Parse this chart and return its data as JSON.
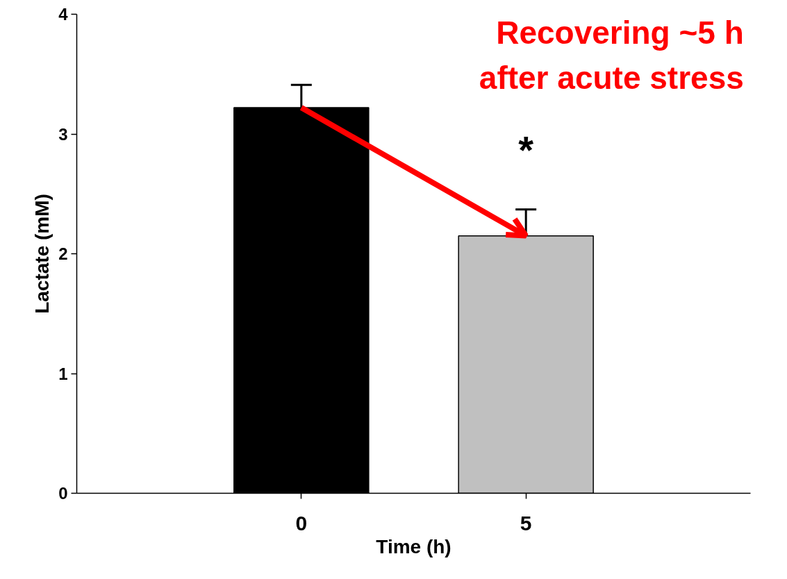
{
  "chart_data": {
    "type": "bar",
    "xlabel": "Time (h)",
    "ylabel": "Lactate (mM)",
    "categories": [
      "0",
      "5"
    ],
    "values": [
      3.22,
      2.15
    ],
    "colors": [
      "#000000",
      "#c0c0c0"
    ],
    "errors": [
      [
        3.22,
        3.41
      ],
      [
        2.15,
        2.37
      ]
    ],
    "ylim": [
      0,
      4
    ],
    "yticks": [
      0,
      1,
      2,
      3,
      4
    ],
    "grid": false,
    "annotations": [
      "Recovering ~5 h\nafter acute stress",
      "*"
    ]
  }
}
